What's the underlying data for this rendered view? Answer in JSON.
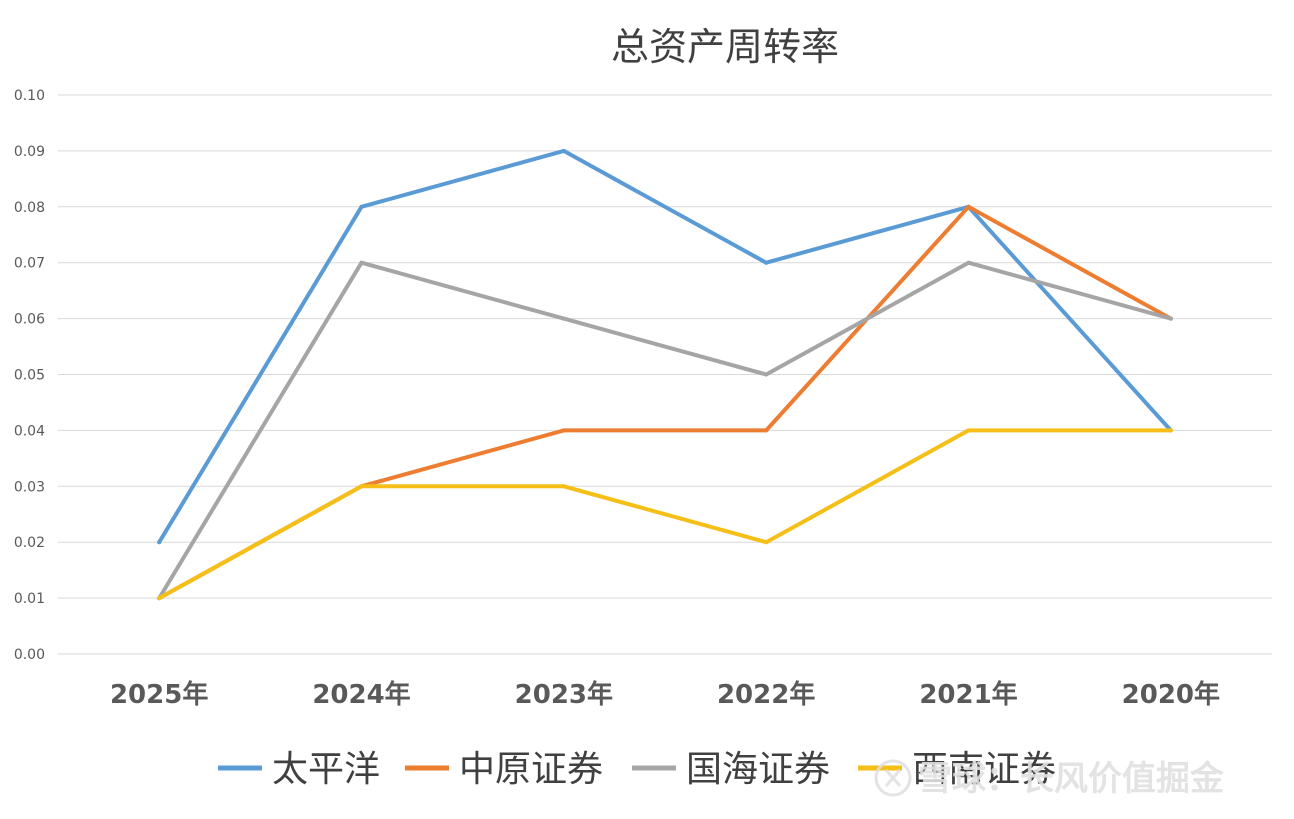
{
  "chart_data": {
    "type": "line",
    "title": "总资产周转率",
    "xlabel": "",
    "ylabel": "",
    "categories": [
      "2025年",
      "2024年",
      "2023年",
      "2022年",
      "2021年",
      "2020年"
    ],
    "ylim": [
      0,
      0.1
    ],
    "yticks": [
      "0.00",
      "0.01",
      "0.02",
      "0.03",
      "0.04",
      "0.05",
      "0.06",
      "0.07",
      "0.08",
      "0.09",
      "0.10"
    ],
    "grid": true,
    "legend_position": "bottom",
    "series": [
      {
        "name": "太平洋",
        "color": "#5b9bd5",
        "values": [
          0.02,
          0.08,
          0.09,
          0.07,
          0.08,
          0.04
        ]
      },
      {
        "name": "中原证券",
        "color": "#ed7d31",
        "values": [
          0.01,
          0.03,
          0.04,
          0.04,
          0.08,
          0.06
        ]
      },
      {
        "name": "国海证券",
        "color": "#a5a5a5",
        "values": [
          0.01,
          0.07,
          0.06,
          0.05,
          0.07,
          0.06
        ]
      },
      {
        "name": "西南证券",
        "color": "#f5bf17",
        "values": [
          0.01,
          0.03,
          0.03,
          0.02,
          0.04,
          0.04
        ]
      }
    ]
  },
  "watermark": {
    "text": "雪球：长风价值掘金",
    "icon": "snowball-logo-icon"
  }
}
